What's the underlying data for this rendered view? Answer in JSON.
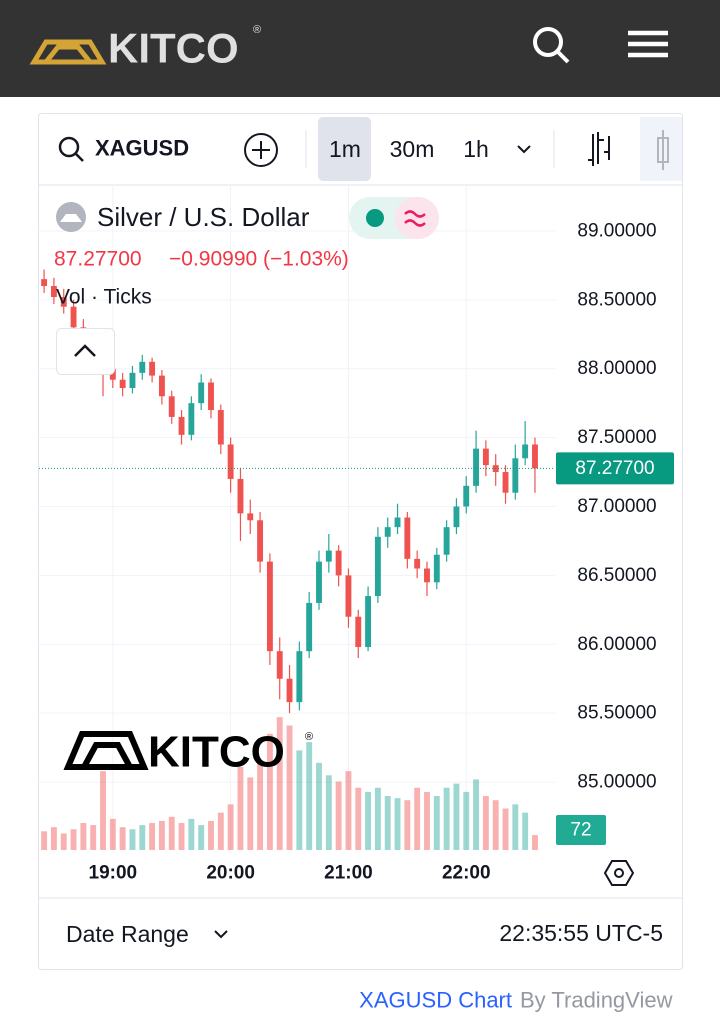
{
  "ui": {
    "logo": "KITCO",
    "logo_mark": "®",
    "symbol": "XAGUSD",
    "intervals": [
      "1m",
      "30m",
      "1h"
    ],
    "change": "−0.90990 (−1.03%)",
    "date_range": "Date Range",
    "clock": "22:35:55 UTC-5",
    "footer_link": "XAGUSD Chart",
    "footer_by": "By TradingView"
  },
  "chart_data": {
    "type": "candlestick",
    "x": [
      25,
      30,
      35,
      40,
      45,
      50,
      55,
      60,
      65,
      70,
      75,
      80,
      85,
      90,
      95,
      100,
      105,
      110,
      115,
      120,
      125,
      130,
      135,
      140,
      145,
      150,
      155,
      160,
      165,
      170,
      175,
      180,
      185,
      190,
      195,
      200,
      205,
      210,
      215,
      220,
      225,
      230,
      235,
      240,
      245,
      250,
      255,
      260,
      265,
      270,
      275
    ],
    "xlim": [
      22.4,
      285.2
    ],
    "xticks": [
      {
        "value": 60,
        "label": "19:00"
      },
      {
        "value": 120,
        "label": "20:00"
      },
      {
        "value": 180,
        "label": "21:00"
      },
      {
        "value": 240,
        "label": "22:00"
      }
    ],
    "ylim": [
      84.507,
      89.326
    ],
    "yticks": [
      {
        "value": 85,
        "label": "85.00000"
      },
      {
        "value": 85.5,
        "label": "85.50000"
      },
      {
        "value": 86,
        "label": "86.00000"
      },
      {
        "value": 86.5,
        "label": "86.50000"
      },
      {
        "value": 87,
        "label": "87.00000"
      },
      {
        "value": 87.5,
        "label": "87.50000"
      },
      {
        "value": 88,
        "label": "88.00000"
      },
      {
        "value": 88.5,
        "label": "88.50000"
      },
      {
        "value": 89,
        "label": "89.00000"
      }
    ],
    "grid": true,
    "series": [
      {
        "name": "Silver / U.S. Dollar",
        "up_color": "#26a69a",
        "down_color": "#ef5350",
        "open": [
          88.65,
          88.6,
          88.52,
          88.45,
          88.3,
          88.2,
          88.05,
          88.0,
          87.92,
          87.86,
          87.97,
          88.05,
          87.95,
          87.8,
          87.65,
          87.52,
          87.75,
          87.9,
          87.7,
          87.45,
          87.2,
          86.95,
          86.9,
          86.6,
          85.95,
          85.75,
          85.58,
          85.95,
          86.3,
          86.6,
          86.68,
          86.5,
          86.2,
          85.98,
          86.35,
          86.78,
          86.85,
          86.92,
          86.62,
          86.55,
          86.45,
          86.65,
          86.85,
          87.0,
          87.15,
          87.42,
          87.3,
          87.25,
          87.1,
          87.35,
          87.45
        ],
        "high": [
          88.72,
          88.66,
          88.58,
          88.5,
          88.36,
          88.25,
          88.1,
          88.05,
          87.97,
          88.02,
          88.1,
          88.08,
          87.99,
          87.84,
          87.7,
          87.8,
          87.96,
          87.93,
          87.74,
          87.5,
          87.28,
          87.05,
          86.96,
          86.66,
          86.05,
          85.85,
          86.02,
          86.38,
          86.68,
          86.8,
          86.72,
          86.55,
          86.25,
          86.42,
          86.85,
          86.92,
          87.02,
          86.96,
          86.68,
          86.6,
          86.7,
          86.9,
          87.06,
          87.22,
          87.55,
          87.48,
          87.38,
          87.3,
          87.45,
          87.62,
          87.5
        ],
        "low": [
          88.55,
          88.47,
          88.4,
          88.25,
          88.14,
          87.98,
          87.8,
          87.86,
          87.8,
          87.82,
          87.92,
          87.9,
          87.74,
          87.6,
          87.45,
          87.48,
          87.7,
          87.64,
          87.38,
          87.1,
          86.75,
          86.8,
          86.52,
          85.85,
          85.6,
          85.5,
          85.52,
          85.9,
          86.25,
          86.52,
          86.42,
          86.12,
          85.9,
          85.95,
          86.3,
          86.7,
          86.8,
          86.55,
          86.48,
          86.35,
          86.4,
          86.6,
          86.8,
          86.95,
          87.1,
          87.22,
          87.15,
          87.02,
          87.05,
          87.3,
          87.1
        ],
        "close": [
          88.6,
          88.52,
          88.45,
          88.3,
          88.2,
          88.05,
          88.0,
          87.92,
          87.86,
          87.97,
          88.05,
          87.95,
          87.8,
          87.65,
          87.52,
          87.75,
          87.9,
          87.7,
          87.45,
          87.2,
          86.95,
          86.9,
          86.6,
          85.95,
          85.75,
          85.58,
          85.95,
          86.3,
          86.6,
          86.68,
          86.5,
          86.2,
          85.98,
          86.35,
          86.78,
          86.85,
          86.92,
          86.62,
          86.55,
          86.45,
          86.65,
          86.85,
          87.0,
          87.15,
          87.42,
          87.3,
          87.25,
          87.1,
          87.35,
          87.45,
          87.277
        ]
      }
    ],
    "volume": {
      "name": "Vol · Ticks",
      "axis": "y2",
      "values": [
        90,
        110,
        80,
        100,
        130,
        120,
        380,
        150,
        110,
        100,
        120,
        130,
        140,
        160,
        130,
        150,
        120,
        140,
        180,
        220,
        400,
        350,
        420,
        560,
        640,
        600,
        480,
        520,
        420,
        360,
        330,
        380,
        300,
        280,
        300,
        260,
        250,
        240,
        300,
        280,
        260,
        300,
        320,
        280,
        340,
        260,
        240,
        200,
        220,
        180,
        72
      ]
    },
    "y2lim": [
      0,
      3200
    ],
    "last_price": {
      "value": 87.277,
      "label": "87.27700"
    }
  }
}
